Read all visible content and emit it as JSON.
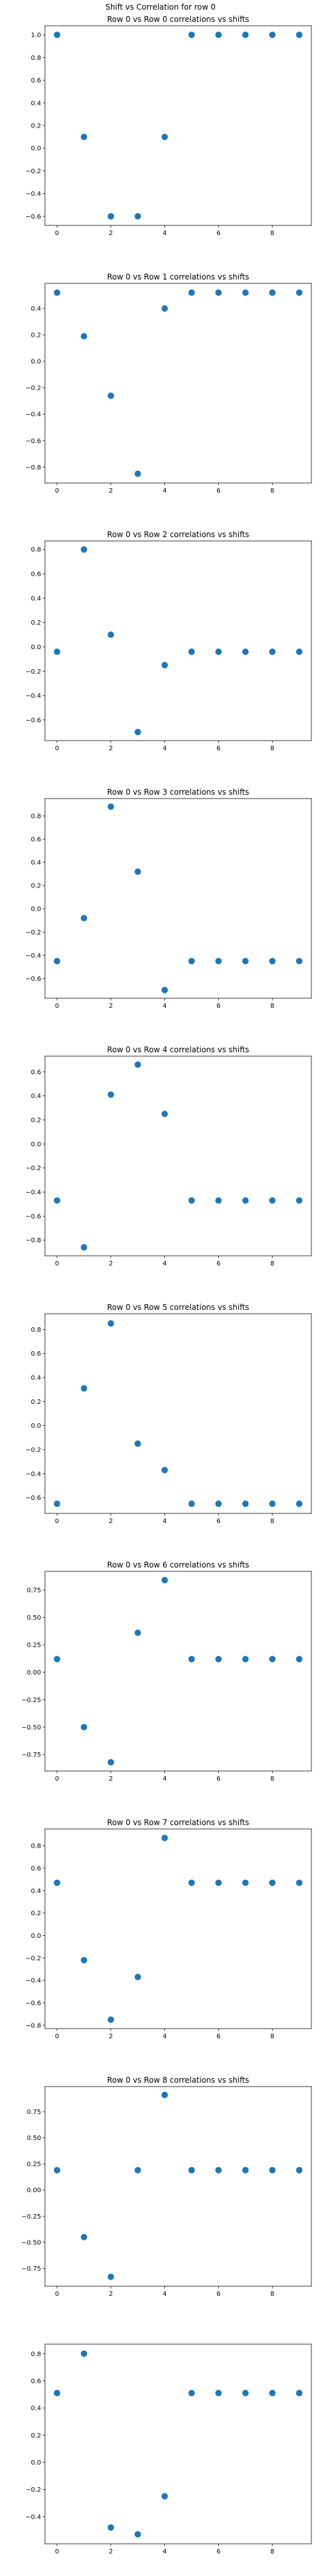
{
  "suptitle": "Shift vs Correlation for row 0",
  "marker_color": "#1f77b4",
  "chart_data": [
    {
      "type": "scatter",
      "title": "Row 0 vs Row 0 correlations vs shifts",
      "x": [
        0,
        1,
        2,
        3,
        4,
        5,
        6,
        7,
        8,
        9
      ],
      "y": [
        1.0,
        0.1,
        -0.6,
        -0.6,
        0.1,
        1.0,
        1.0,
        1.0,
        1.0,
        1.0
      ],
      "xlim": [
        -0.45,
        9.45
      ],
      "ylim": [
        -0.68,
        1.08
      ],
      "xticks": [
        0,
        2,
        4,
        6,
        8
      ],
      "yticks": [
        1.0,
        0.8,
        0.6,
        0.4,
        0.2,
        0.0,
        -0.2,
        -0.4,
        -0.6
      ],
      "ytick_labels": [
        "1.0",
        "0.8",
        "0.6",
        "0.4",
        "0.2",
        "0.0",
        "−0.2",
        "−0.4",
        "−0.6"
      ]
    },
    {
      "type": "scatter",
      "title": "Row 0 vs Row 1 correlations vs shifts",
      "x": [
        0,
        1,
        2,
        3,
        4,
        5,
        6,
        7,
        8,
        9
      ],
      "y": [
        0.52,
        0.19,
        -0.26,
        -0.85,
        0.4,
        0.52,
        0.52,
        0.52,
        0.52,
        0.52
      ],
      "xlim": [
        -0.45,
        9.45
      ],
      "ylim": [
        -0.92,
        0.59
      ],
      "xticks": [
        0,
        2,
        4,
        6,
        8
      ],
      "yticks": [
        0.4,
        0.2,
        0.0,
        -0.2,
        -0.4,
        -0.6,
        -0.8
      ],
      "ytick_labels": [
        "0.4",
        "0.2",
        "0.0",
        "−0.2",
        "−0.4",
        "−0.6",
        "−0.8"
      ]
    },
    {
      "type": "scatter",
      "title": "Row 0 vs Row 2 correlations vs shifts",
      "x": [
        0,
        1,
        2,
        3,
        4,
        5,
        6,
        7,
        8,
        9
      ],
      "y": [
        -0.04,
        0.8,
        0.1,
        -0.7,
        -0.15,
        -0.04,
        -0.04,
        -0.04,
        -0.04,
        -0.04
      ],
      "xlim": [
        -0.45,
        9.45
      ],
      "ylim": [
        -0.77,
        0.87
      ],
      "xticks": [
        0,
        2,
        4,
        6,
        8
      ],
      "yticks": [
        0.8,
        0.6,
        0.4,
        0.2,
        0.0,
        -0.2,
        -0.4,
        -0.6
      ],
      "ytick_labels": [
        "0.8",
        "0.6",
        "0.4",
        "0.2",
        "0.0",
        "−0.2",
        "−0.4",
        "−0.6"
      ]
    },
    {
      "type": "scatter",
      "title": "Row 0 vs Row 3 correlations vs shifts",
      "x": [
        0,
        1,
        2,
        3,
        4,
        5,
        6,
        7,
        8,
        9
      ],
      "y": [
        -0.45,
        -0.08,
        0.88,
        0.32,
        -0.7,
        -0.45,
        -0.45,
        -0.45,
        -0.45,
        -0.45
      ],
      "xlim": [
        -0.45,
        9.45
      ],
      "ylim": [
        -0.77,
        0.95
      ],
      "xticks": [
        0,
        2,
        4,
        6,
        8
      ],
      "yticks": [
        0.8,
        0.6,
        0.4,
        0.2,
        0.0,
        -0.2,
        -0.4,
        -0.6
      ],
      "ytick_labels": [
        "0.8",
        "0.6",
        "0.4",
        "0.2",
        "0.0",
        "−0.2",
        "−0.4",
        "−0.6"
      ]
    },
    {
      "type": "scatter",
      "title": "Row 0 vs Row 4 correlations vs shifts",
      "x": [
        0,
        1,
        2,
        3,
        4,
        5,
        6,
        7,
        8,
        9
      ],
      "y": [
        -0.47,
        -0.86,
        0.41,
        0.66,
        0.25,
        -0.47,
        -0.47,
        -0.47,
        -0.47,
        -0.47
      ],
      "xlim": [
        -0.45,
        9.45
      ],
      "ylim": [
        -0.93,
        0.73
      ],
      "xticks": [
        0,
        2,
        4,
        6,
        8
      ],
      "yticks": [
        0.6,
        0.4,
        0.2,
        0.0,
        -0.2,
        -0.4,
        -0.6,
        -0.8
      ],
      "ytick_labels": [
        "0.6",
        "0.4",
        "0.2",
        "0.0",
        "−0.2",
        "−0.4",
        "−0.6",
        "−0.8"
      ]
    },
    {
      "type": "scatter",
      "title": "Row 0 vs Row 5 correlations vs shifts",
      "x": [
        0,
        1,
        2,
        3,
        4,
        5,
        6,
        7,
        8,
        9
      ],
      "y": [
        -0.65,
        0.31,
        0.85,
        -0.15,
        -0.37,
        -0.65,
        -0.65,
        -0.65,
        -0.65,
        -0.65
      ],
      "xlim": [
        -0.45,
        9.45
      ],
      "ylim": [
        -0.73,
        0.93
      ],
      "xticks": [
        0,
        2,
        4,
        6,
        8
      ],
      "yticks": [
        0.8,
        0.6,
        0.4,
        0.2,
        0.0,
        -0.2,
        -0.4,
        -0.6
      ],
      "ytick_labels": [
        "0.8",
        "0.6",
        "0.4",
        "0.2",
        "0.0",
        "−0.2",
        "−0.4",
        "−0.6"
      ]
    },
    {
      "type": "scatter",
      "title": "Row 0 vs Row 6 correlations vs shifts",
      "x": [
        0,
        1,
        2,
        3,
        4,
        5,
        6,
        7,
        8,
        9
      ],
      "y": [
        0.12,
        -0.5,
        -0.82,
        0.36,
        0.84,
        0.12,
        0.12,
        0.12,
        0.12,
        0.12
      ],
      "xlim": [
        -0.45,
        9.45
      ],
      "ylim": [
        -0.9,
        0.92
      ],
      "xticks": [
        0,
        2,
        4,
        6,
        8
      ],
      "yticks": [
        0.75,
        0.5,
        0.25,
        0.0,
        -0.25,
        -0.5,
        -0.75
      ],
      "ytick_labels": [
        "0.75",
        "0.50",
        "0.25",
        "0.00",
        "−0.25",
        "−0.50",
        "−0.75"
      ]
    },
    {
      "type": "scatter",
      "title": "Row 0 vs Row 7 correlations vs shifts",
      "x": [
        0,
        1,
        2,
        3,
        4,
        5,
        6,
        7,
        8,
        9
      ],
      "y": [
        0.47,
        -0.22,
        -0.75,
        -0.37,
        0.87,
        0.47,
        0.47,
        0.47,
        0.47,
        0.47
      ],
      "xlim": [
        -0.45,
        9.45
      ],
      "ylim": [
        -0.83,
        0.95
      ],
      "xticks": [
        0,
        2,
        4,
        6,
        8
      ],
      "yticks": [
        0.8,
        0.6,
        0.4,
        0.2,
        0.0,
        -0.2,
        -0.4,
        -0.6,
        -0.8
      ],
      "ytick_labels": [
        "0.8",
        "0.6",
        "0.4",
        "0.2",
        "0.0",
        "−0.2",
        "−0.4",
        "−0.6",
        "−0.8"
      ]
    },
    {
      "type": "scatter",
      "title": "Row 0 vs Row 8 correlations vs shifts",
      "x": [
        0,
        1,
        2,
        3,
        4,
        5,
        6,
        7,
        8,
        9
      ],
      "y": [
        0.19,
        -0.45,
        -0.83,
        0.19,
        0.91,
        0.19,
        0.19,
        0.19,
        0.19,
        0.19
      ],
      "xlim": [
        -0.45,
        9.45
      ],
      "ylim": [
        -0.92,
        0.99
      ],
      "xticks": [
        0,
        2,
        4,
        6,
        8
      ],
      "yticks": [
        0.75,
        0.5,
        0.25,
        0.0,
        -0.25,
        -0.5,
        -0.75
      ],
      "ytick_labels": [
        "0.75",
        "0.50",
        "0.25",
        "0.00",
        "−0.25",
        "−0.50",
        "−0.75"
      ]
    },
    {
      "type": "scatter",
      "title": "",
      "x": [
        0,
        1,
        2,
        3,
        4,
        5,
        6,
        7,
        8,
        9
      ],
      "y": [
        0.51,
        0.8,
        -0.48,
        -0.53,
        -0.25,
        0.51,
        0.51,
        0.51,
        0.51,
        0.51
      ],
      "xlim": [
        -0.45,
        9.45
      ],
      "ylim": [
        -0.6,
        0.87
      ],
      "xticks": [
        0,
        2,
        4,
        6,
        8
      ],
      "yticks": [
        0.8,
        0.6,
        0.4,
        0.2,
        0.0,
        -0.2,
        -0.4
      ],
      "ytick_labels": [
        "0.8",
        "0.6",
        "0.4",
        "0.2",
        "0.0",
        "−0.2",
        "−0.4"
      ]
    }
  ]
}
